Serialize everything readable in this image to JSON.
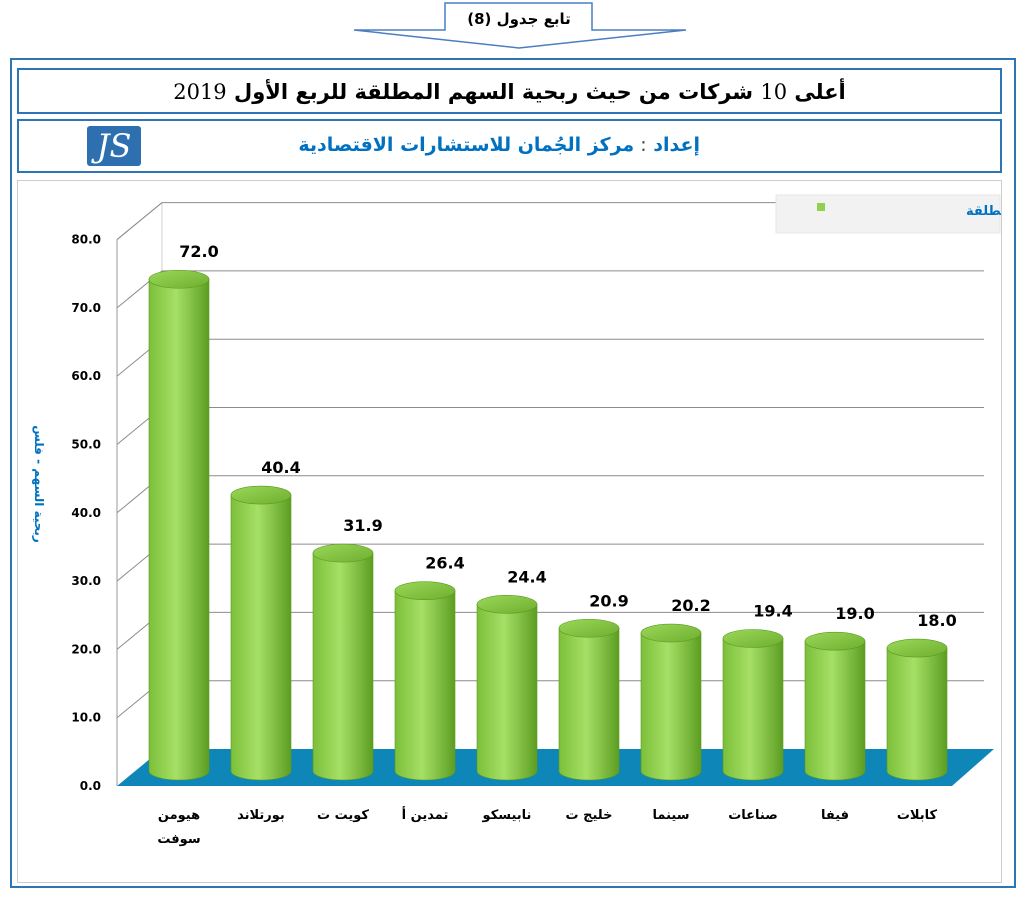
{
  "header": {
    "continuation": "تابع جدول",
    "table_number": "8",
    "title_prefix": "أعلى",
    "title_count": "10",
    "title_main": "شركات من حيث ربحية السهم المطلقة للربع الأول",
    "title_year": "2019",
    "author_label": "إعداد",
    "author_name": "مركز الجُمان للاستشارات الاقتصادية"
  },
  "colors": {
    "accent": "#2e75b6",
    "bar": "#92d050",
    "bar_dark": "#5a9a1a",
    "floor": "#0f86b8",
    "author_text": "#0070c0"
  },
  "chart_data": {
    "type": "bar",
    "title": "",
    "xlabel": "",
    "ylabel": "ربحية السهم - فلس",
    "ylim": [
      0,
      80
    ],
    "yticks": [
      "0.0",
      "10.0",
      "20.0",
      "30.0",
      "40.0",
      "50.0",
      "60.0",
      "70.0",
      "80.0"
    ],
    "grid": true,
    "legend_position": "top-right",
    "categories": [
      "هيومن سوفت",
      "بورتلاند",
      "كويت ت",
      "تمدين أ",
      "نابيسكو",
      "خليج ت",
      "سينما",
      "صناعات",
      "فيفا",
      "كابلات"
    ],
    "series": [
      {
        "name": "ربحية السهم المطلقة",
        "values": [
          72.0,
          40.4,
          31.9,
          26.4,
          24.4,
          20.9,
          20.2,
          19.4,
          19.0,
          18.0
        ],
        "labels": [
          "72.0",
          "40.4",
          "31.9",
          "26.4",
          "24.4",
          "20.9",
          "20.2",
          "19.4",
          "19.0",
          "18.0"
        ]
      }
    ]
  }
}
